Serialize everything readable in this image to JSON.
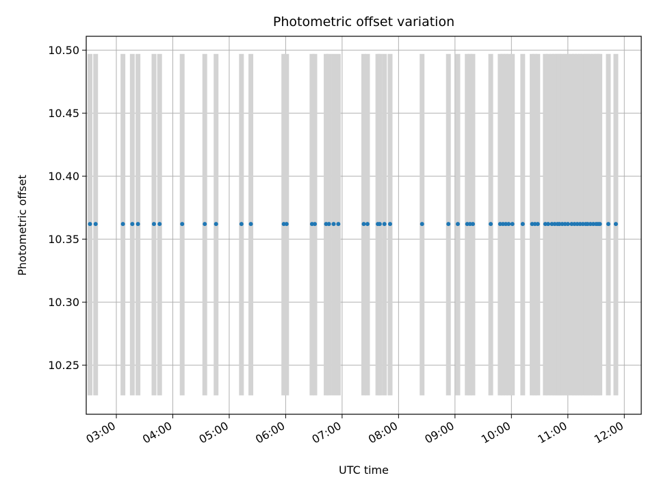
{
  "chart_data": {
    "type": "scatter",
    "title": "Photometric offset variation",
    "xlabel": "UTC time",
    "ylabel": "Photometric offset",
    "x_axis_format": "HH:MM",
    "xlim": [
      "02:28",
      "12:18"
    ],
    "ylim": [
      10.211,
      10.511
    ],
    "y_ticks": [
      "10.25",
      "10.30",
      "10.35",
      "10.40",
      "10.45",
      "10.50"
    ],
    "x_ticks": [
      "03:00",
      "04:00",
      "05:00",
      "06:00",
      "07:00",
      "08:00",
      "09:00",
      "10:00",
      "11:00",
      "12:00"
    ],
    "grid": true,
    "marker_color": "#1f77b4",
    "band_color": "#d3d3d3",
    "band_range": [
      10.226,
      10.497
    ],
    "points": {
      "y": 10.362,
      "x": [
        "02:32",
        "02:38",
        "03:07",
        "03:17",
        "03:23",
        "03:40",
        "03:46",
        "04:10",
        "04:34",
        "04:46",
        "05:13",
        "05:23",
        "05:58",
        "06:01",
        "06:28",
        "06:31",
        "06:43",
        "06:46",
        "06:51",
        "06:56",
        "07:23",
        "07:27",
        "07:38",
        "07:40",
        "07:45",
        "07:51",
        "08:25",
        "08:53",
        "09:03",
        "09:13",
        "09:16",
        "09:19",
        "09:38",
        "09:48",
        "09:51",
        "09:54",
        "09:57",
        "10:01",
        "10:12",
        "10:22",
        "10:25",
        "10:28",
        "10:36",
        "10:39",
        "10:43",
        "10:46",
        "10:49",
        "10:51",
        "10:54",
        "10:57",
        "11:00",
        "11:04",
        "11:07",
        "11:10",
        "11:13",
        "11:16",
        "11:19",
        "11:21",
        "11:24",
        "11:27",
        "11:30",
        "11:32",
        "11:34",
        "11:43",
        "11:51"
      ]
    }
  }
}
